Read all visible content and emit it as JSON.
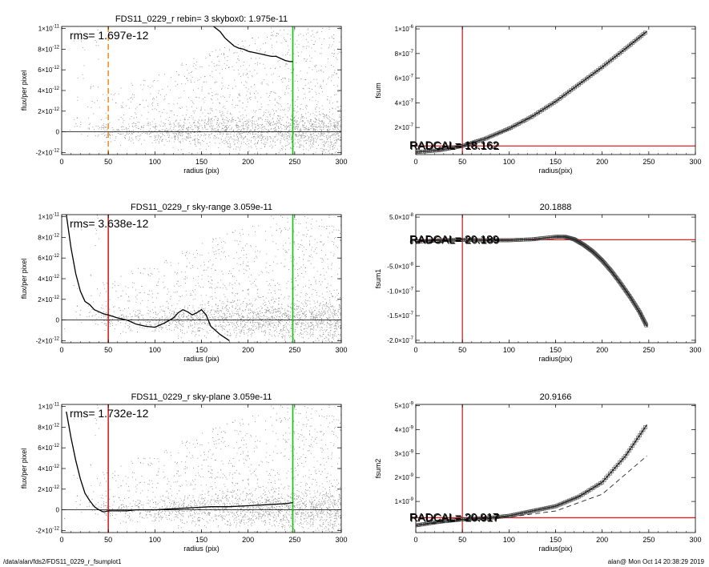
{
  "footer": {
    "path": "/data/alan/fds2/FDS11_0229_r_fsumplot1",
    "stamp": "alan@  Mon Oct 14 20:38:29 2019"
  },
  "colors": {
    "scatter": "#8a8a8a",
    "profile": "#000000",
    "background_radius": "#00cc00",
    "inner_radius_dashed": "#ff8c1a",
    "inner_radius": "#dd2222",
    "reference_line": "#dd2222",
    "curve_markers": "#444444"
  },
  "chart_data": [
    {
      "panel": "left-1",
      "type": "scatter",
      "title": "FDS11_0229_r rebin= 3    skybox0:  1.975e-11",
      "annotation": "rms= 1.697e-12",
      "xlabel": "radius (pix)",
      "ylabel": "flux/per pixel",
      "xlim": [
        0,
        300
      ],
      "ylim": [
        -2.2e-12,
        1.02e-11
      ],
      "xticks": [
        "0",
        "50",
        "100",
        "150",
        "200",
        "250",
        "300"
      ],
      "yticks": [
        {
          "v": -2e-12,
          "m": "-2×10",
          "e": "-12"
        },
        {
          "v": 0,
          "m": "0",
          "e": ""
        },
        {
          "v": 2e-12,
          "m": "2×10",
          "e": "-12"
        },
        {
          "v": 4e-12,
          "m": "4×10",
          "e": "-12"
        },
        {
          "v": 6e-12,
          "m": "6×10",
          "e": "-12"
        },
        {
          "v": 8e-12,
          "m": "8×10",
          "e": "-12"
        },
        {
          "v": 1e-11,
          "m": "1×10",
          "e": "-11"
        }
      ],
      "vlines": [
        {
          "x": 50,
          "color": "orange",
          "style": "dashed"
        },
        {
          "x": 248,
          "color": "green",
          "style": "solid"
        }
      ],
      "profile": {
        "x": [
          163,
          170,
          175,
          180,
          185,
          190,
          195,
          200,
          205,
          210,
          215,
          220,
          225,
          230,
          235,
          240,
          245,
          248
        ],
        "y": [
          1.02e-11,
          9.7e-12,
          9.1e-12,
          8.7e-12,
          8.3e-12,
          8.1e-12,
          8e-12,
          7.8e-12,
          7.7e-12,
          7.6e-12,
          7.5e-12,
          7.4e-12,
          7.3e-12,
          7.3e-12,
          7.1e-12,
          6.9e-12,
          6.8e-12,
          6.8e-12
        ]
      }
    },
    {
      "panel": "right-1",
      "type": "line",
      "title": "",
      "xlabel": "radius(pix)",
      "ylabel": "fsum",
      "xlim": [
        0,
        300
      ],
      "ylim": [
        -2e-08,
        1.02e-06
      ],
      "xticks": [
        "0",
        "50",
        "100",
        "150",
        "200",
        "250",
        "300"
      ],
      "yticks": [
        {
          "v": 2e-07,
          "m": "2×10",
          "e": "-7"
        },
        {
          "v": 4e-07,
          "m": "4×10",
          "e": "-7"
        },
        {
          "v": 6e-07,
          "m": "6×10",
          "e": "-7"
        },
        {
          "v": 8e-07,
          "m": "8×10",
          "e": "-7"
        },
        {
          "v": 1e-06,
          "m": "1×10",
          "e": "-6"
        }
      ],
      "hline": 5e-08,
      "vline": 50,
      "overlay_text": "RADCAL= 18.162",
      "curve": {
        "x": [
          0,
          25,
          50,
          75,
          100,
          125,
          150,
          175,
          200,
          225,
          248
        ],
        "y": [
          0,
          1.5e-08,
          5e-08,
          1.1e-07,
          1.9e-07,
          2.9e-07,
          4.1e-07,
          5.5e-07,
          6.9e-07,
          8.4e-07,
          9.8e-07
        ]
      }
    },
    {
      "panel": "left-2",
      "type": "scatter",
      "title": "FDS11_0229_r sky-range  3.059e-11",
      "annotation": "rms= 3.638e-12",
      "xlabel": "radius (pix)",
      "ylabel": "flux/per pixel",
      "xlim": [
        0,
        300
      ],
      "ylim": [
        -2.2e-12,
        1.02e-11
      ],
      "xticks": [
        "0",
        "50",
        "100",
        "150",
        "200",
        "250",
        "300"
      ],
      "yticks": [
        {
          "v": -2e-12,
          "m": "-2×10",
          "e": "-12"
        },
        {
          "v": 0,
          "m": "0",
          "e": ""
        },
        {
          "v": 2e-12,
          "m": "2×10",
          "e": "-12"
        },
        {
          "v": 4e-12,
          "m": "4×10",
          "e": "-12"
        },
        {
          "v": 6e-12,
          "m": "6×10",
          "e": "-12"
        },
        {
          "v": 8e-12,
          "m": "8×10",
          "e": "-12"
        },
        {
          "v": 1e-11,
          "m": "1×10",
          "e": "-11"
        }
      ],
      "vlines": [
        {
          "x": 50,
          "color": "red",
          "style": "solid"
        },
        {
          "x": 248,
          "color": "green",
          "style": "solid"
        }
      ],
      "profile": {
        "x": [
          5,
          10,
          15,
          20,
          25,
          30,
          35,
          40,
          45,
          50,
          60,
          70,
          80,
          90,
          100,
          110,
          120,
          125,
          130,
          135,
          140,
          145,
          150,
          155,
          160,
          170,
          180
        ],
        "y": [
          1.02e-11,
          7e-12,
          4.5e-12,
          2.8e-12,
          1.8e-12,
          1.5e-12,
          1e-12,
          8e-13,
          6e-13,
          5e-13,
          2e-13,
          0,
          -4e-13,
          -6e-13,
          -7e-13,
          -3e-13,
          2e-13,
          7e-13,
          1e-12,
          8e-13,
          5e-13,
          7e-13,
          1e-12,
          5e-13,
          -6e-13,
          -1.4e-12,
          -2e-12
        ]
      }
    },
    {
      "panel": "right-2",
      "type": "line",
      "title": "20.1888",
      "xlabel": "radius(pix)",
      "ylabel": "fsum1",
      "xlim": [
        0,
        300
      ],
      "ylim": [
        -2.05e-07,
        5.5e-08
      ],
      "xticks": [
        "0",
        "50",
        "100",
        "150",
        "200",
        "250",
        "300"
      ],
      "yticks": [
        {
          "v": -2e-07,
          "m": "-2.0×10",
          "e": "-7"
        },
        {
          "v": -1.5e-07,
          "m": "-1.5×10",
          "e": "-7"
        },
        {
          "v": -1e-07,
          "m": "-1.0×10",
          "e": "-7"
        },
        {
          "v": -5e-08,
          "m": "-5.0×10",
          "e": "-8"
        },
        {
          "v": 0,
          "m": "0",
          "e": ""
        },
        {
          "v": 5e-08,
          "m": "5.0×10",
          "e": "-8"
        }
      ],
      "hline": 4e-09,
      "vline": 50,
      "overlay_text": "RADCAL= 20.189",
      "curve": {
        "x": [
          0,
          25,
          50,
          75,
          100,
          125,
          150,
          160,
          170,
          180,
          190,
          200,
          210,
          220,
          230,
          240,
          248
        ],
        "y": [
          0,
          3e-09,
          4e-09,
          3e-09,
          3e-09,
          5e-09,
          1e-08,
          1e-08,
          5e-09,
          -6e-09,
          -2e-08,
          -3.8e-08,
          -6e-08,
          -8.5e-08,
          -1.12e-07,
          -1.42e-07,
          -1.72e-07
        ]
      }
    },
    {
      "panel": "left-3",
      "type": "scatter",
      "title": "FDS11_0229_r sky-plane  3.059e-11",
      "annotation": "rms= 1.732e-12",
      "xlabel": "radius (pix)",
      "ylabel": "flux/per pixel",
      "xlim": [
        0,
        300
      ],
      "ylim": [
        -2.2e-12,
        1.02e-11
      ],
      "xticks": [
        "0",
        "50",
        "100",
        "150",
        "200",
        "250",
        "300"
      ],
      "yticks": [
        {
          "v": -2e-12,
          "m": "-2×10",
          "e": "-12"
        },
        {
          "v": 0,
          "m": "0",
          "e": ""
        },
        {
          "v": 2e-12,
          "m": "2×10",
          "e": "-12"
        },
        {
          "v": 4e-12,
          "m": "4×10",
          "e": "-12"
        },
        {
          "v": 6e-12,
          "m": "6×10",
          "e": "-12"
        },
        {
          "v": 8e-12,
          "m": "8×10",
          "e": "-12"
        },
        {
          "v": 1e-11,
          "m": "1×10",
          "e": "-11"
        }
      ],
      "vlines": [
        {
          "x": 50,
          "color": "red",
          "style": "solid"
        },
        {
          "x": 248,
          "color": "green",
          "style": "solid"
        }
      ],
      "profile": {
        "x": [
          5,
          10,
          15,
          20,
          25,
          30,
          35,
          40,
          45,
          50,
          60,
          70,
          80,
          100,
          120,
          140,
          160,
          180,
          200,
          220,
          240,
          248
        ],
        "y": [
          9.5e-12,
          7e-12,
          4.8e-12,
          3e-12,
          1.6e-12,
          9e-13,
          3e-13,
          0,
          -2e-13,
          -1e-13,
          -1e-13,
          -1e-13,
          0,
          0,
          1e-13,
          2e-13,
          3e-13,
          3e-13,
          4e-13,
          5e-13,
          6e-13,
          7e-13
        ]
      }
    },
    {
      "panel": "right-3",
      "type": "line",
      "title": "20.9166",
      "xlabel": "radius(pix)",
      "ylabel": "fsum2",
      "xlim": [
        0,
        300
      ],
      "ylim": [
        -3e-10,
        5.05e-09
      ],
      "xticks": [
        "0",
        "50",
        "100",
        "150",
        "200",
        "250",
        "300"
      ],
      "yticks": [
        {
          "v": 1e-09,
          "m": "1×10",
          "e": "-9"
        },
        {
          "v": 2e-09,
          "m": "2×10",
          "e": "-9"
        },
        {
          "v": 3e-09,
          "m": "3×10",
          "e": "-9"
        },
        {
          "v": 4e-09,
          "m": "4×10",
          "e": "-9"
        },
        {
          "v": 5e-09,
          "m": "5×10",
          "e": "-9"
        }
      ],
      "hline": 3.2e-10,
      "vline": 50,
      "overlay_text": "RADCAL= 20.917",
      "curve": {
        "x": [
          0,
          25,
          50,
          75,
          100,
          125,
          150,
          175,
          200,
          225,
          248
        ],
        "y": [
          0,
          1.5e-10,
          2.5e-10,
          3e-10,
          4e-10,
          6e-10,
          8e-10,
          1.2e-09,
          1.8e-09,
          2.9e-09,
          4.2e-09
        ]
      },
      "curve2": {
        "x": [
          0,
          50,
          100,
          150,
          200,
          248
        ],
        "y": [
          0,
          2e-10,
          3.5e-10,
          6e-10,
          1.3e-09,
          2.9e-09
        ]
      }
    }
  ]
}
